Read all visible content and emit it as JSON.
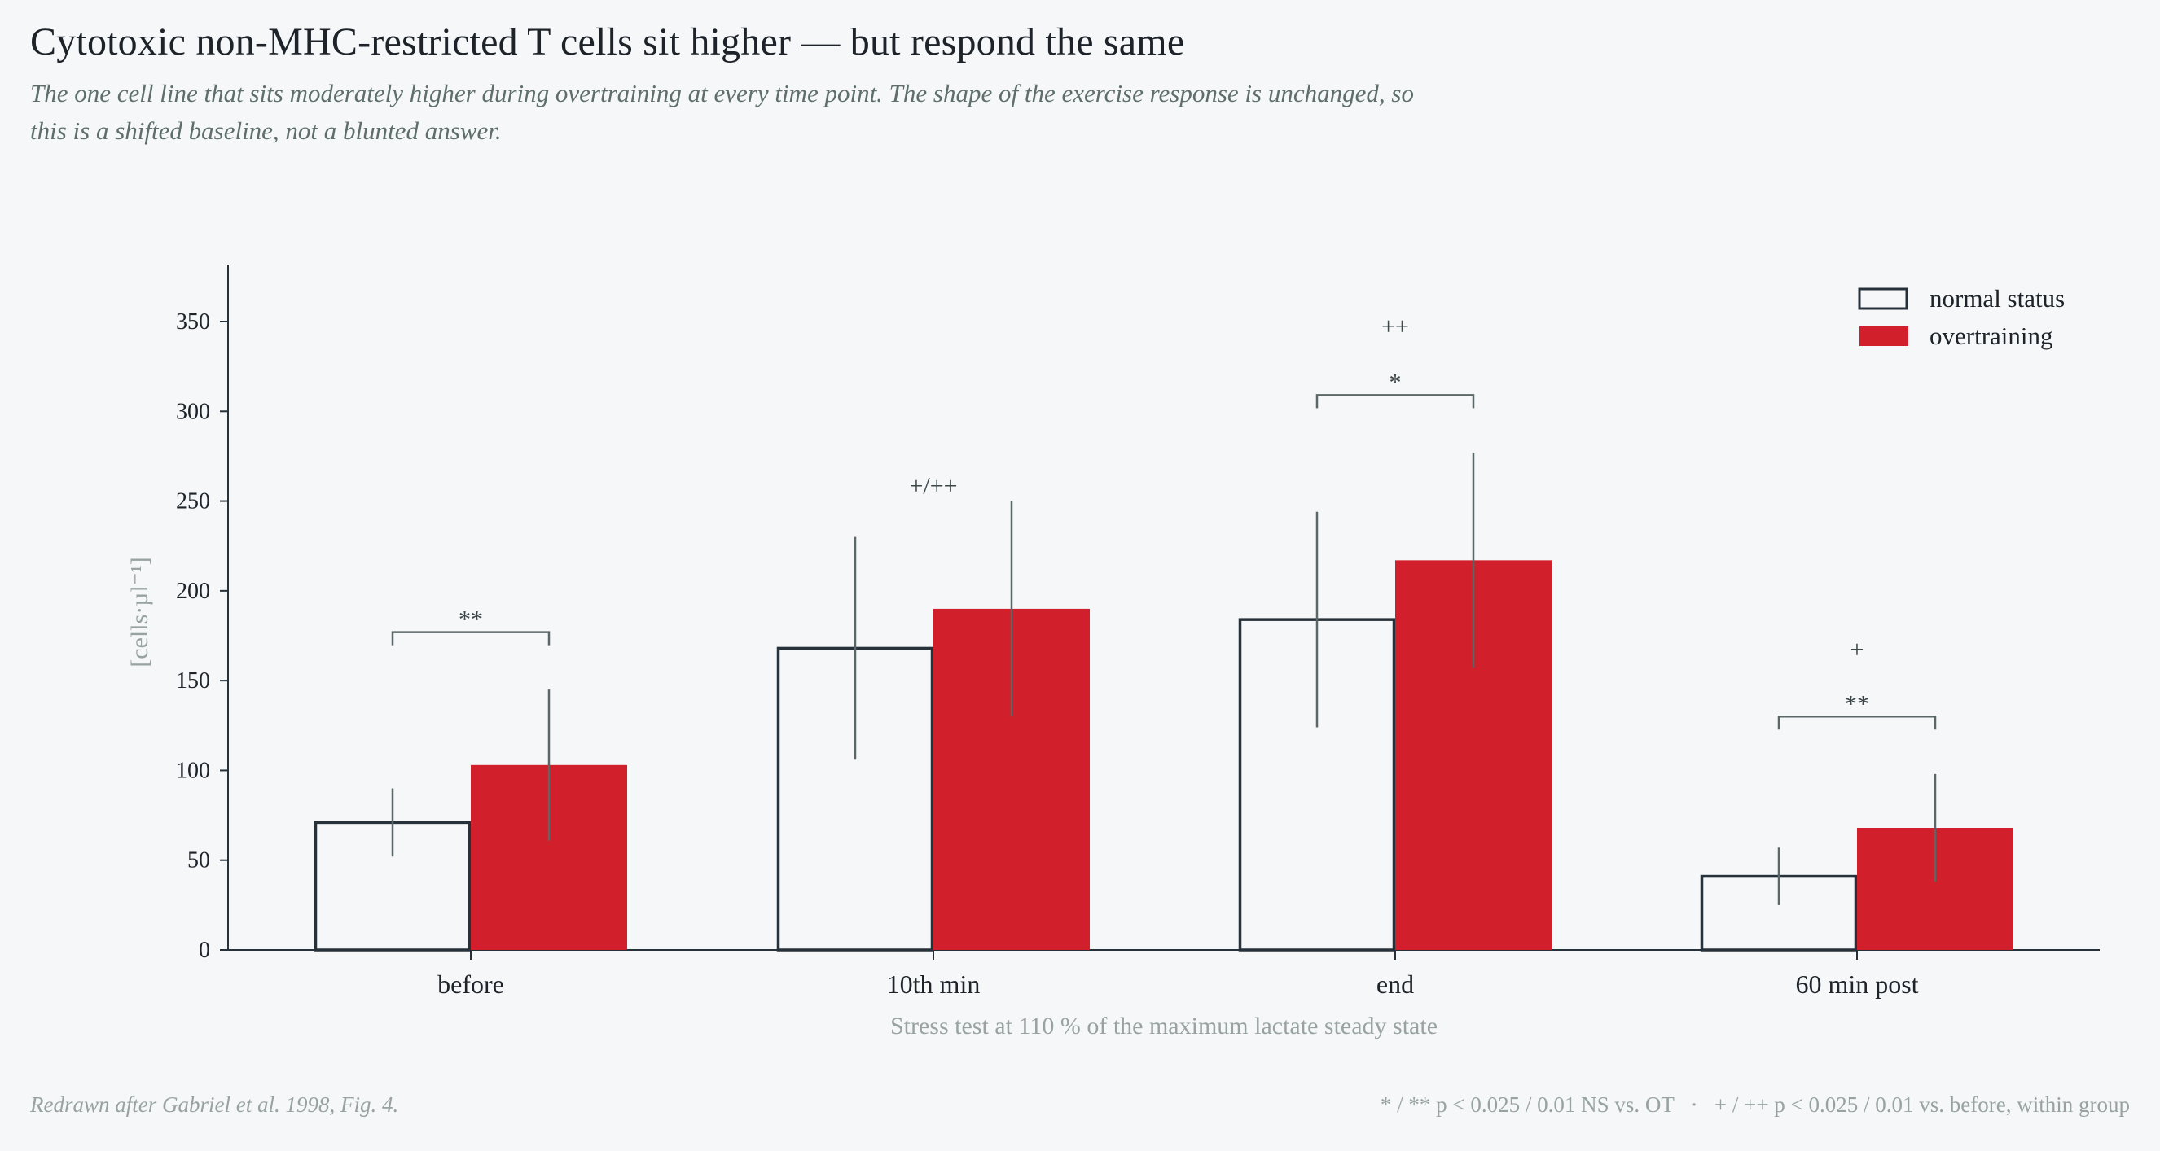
{
  "title": "Cytotoxic non-MHC-restricted T cells sit higher — but respond the same",
  "subtitle": "The one cell line that sits moderately higher during overtraining at every time point. The shape of the exercise response is unchanged, so this is a shifted baseline, not a blunted answer.",
  "colors": {
    "normal_outline": "#26313a",
    "normal_fill": "#f5f7f9",
    "overtraining": "#d1202b",
    "error_bar": "#5b6766",
    "axis": "#26313a",
    "muted_text": "#98a3a0"
  },
  "chart_data": {
    "type": "bar",
    "xlabel": "Stress test at 110 % of the maximum lactate steady state",
    "ylabel": "[cells·µl⁻¹]",
    "ylim": [
      0,
      380
    ],
    "yticks": [
      0,
      50,
      100,
      150,
      200,
      250,
      300,
      350
    ],
    "categories": [
      "before",
      "10th min",
      "end",
      "60 min post"
    ],
    "legend_position": "top-right",
    "grid": false,
    "series": [
      {
        "name": "normal status",
        "values": [
          71,
          168,
          184,
          41
        ],
        "err_low": [
          52,
          106,
          124,
          25
        ],
        "err_high": [
          90,
          230,
          244,
          57
        ]
      },
      {
        "name": "overtraining",
        "values": [
          103,
          190,
          217,
          68
        ],
        "err_low": [
          61,
          130,
          157,
          38
        ],
        "err_high": [
          145,
          250,
          277,
          98
        ]
      }
    ],
    "between_group_brackets": [
      {
        "category_index": 0,
        "label": "**",
        "y": 177
      },
      {
        "category_index": 2,
        "label": "*",
        "y": 309
      },
      {
        "category_index": 3,
        "label": "**",
        "y": 130
      }
    ],
    "within_group_marks": [
      {
        "category_index": 1,
        "label": "+/++",
        "y": 254
      },
      {
        "category_index": 2,
        "label": "++",
        "y": 343
      },
      {
        "category_index": 3,
        "label": "+",
        "y": 163
      }
    ]
  },
  "footer": {
    "source": "Redrawn after Gabriel et al. 1998, Fig. 4.",
    "legend_note_1": "* / ** p < 0.025 / 0.01 NS vs. OT",
    "separator": "·",
    "legend_note_2": "+ / ++ p < 0.025 / 0.01 vs. before, within group"
  }
}
